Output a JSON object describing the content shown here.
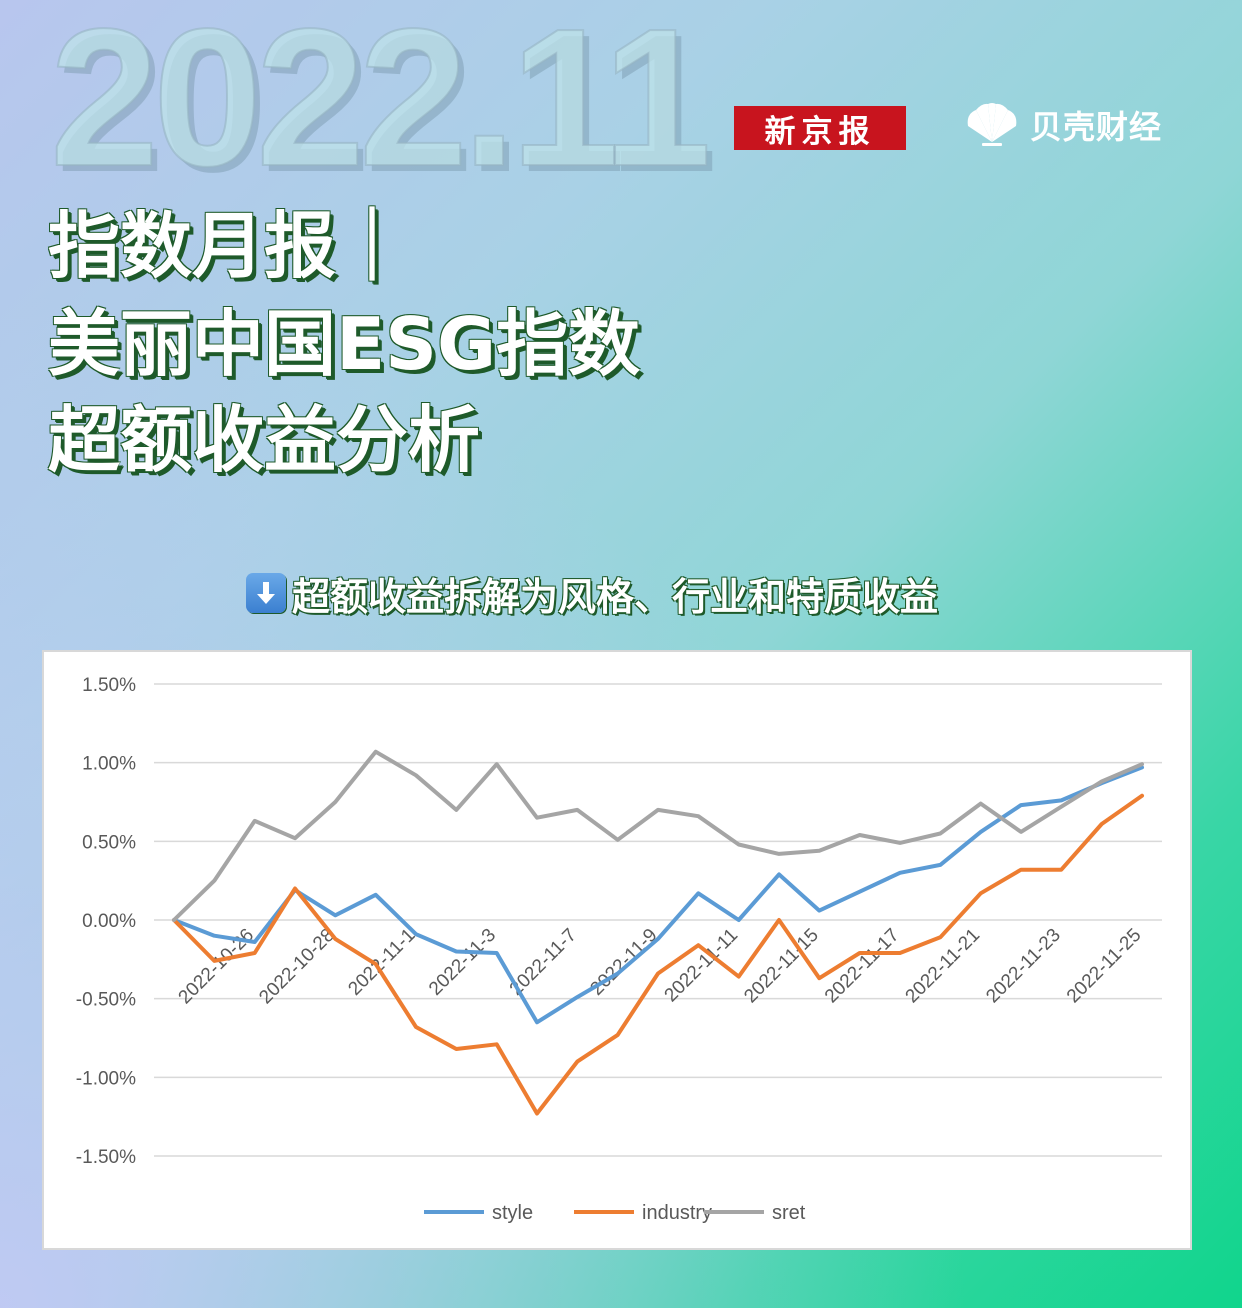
{
  "header": {
    "year_month": "2022.11",
    "xjb_logo": "新京报",
    "bk_logo": "贝壳财经"
  },
  "title": {
    "line1": "指数月报｜",
    "line2": "美丽中国ESG指数",
    "line3": "超额收益分析"
  },
  "subtitle": {
    "icon": "down-arrow-icon",
    "text": "超额收益拆解为风格、行业和特质收益"
  },
  "chart_data": {
    "type": "line",
    "y_ticks": [
      "1.50%",
      "1.00%",
      "0.50%",
      "0.00%",
      "-0.50%",
      "-1.00%",
      "-1.50%"
    ],
    "ylim": [
      -1.5,
      1.5
    ],
    "x_tick_labels": [
      "2022-10-26",
      "2022-10-28",
      "2022-11-1",
      "2022-11-3",
      "2022-11-7",
      "2022-11-9",
      "2022-11-11",
      "2022-11-15",
      "2022-11-17",
      "2022-11-21",
      "2022-11-23",
      "2022-11-25"
    ],
    "grid": true,
    "legend_position": "bottom",
    "series": [
      {
        "name": "style",
        "color": "#5b9bd5",
        "values": [
          0.0,
          -0.1,
          -0.14,
          0.19,
          0.03,
          0.16,
          -0.09,
          -0.2,
          -0.21,
          -0.65,
          -0.49,
          -0.34,
          -0.12,
          0.17,
          0.0,
          0.29,
          0.06,
          0.18,
          0.3,
          0.35,
          0.56,
          0.73,
          0.76,
          0.87,
          0.97
        ]
      },
      {
        "name": "industry",
        "color": "#ed7d31",
        "values": [
          0.0,
          -0.26,
          -0.21,
          0.2,
          -0.12,
          -0.28,
          -0.68,
          -0.82,
          -0.79,
          -1.23,
          -0.9,
          -0.73,
          -0.34,
          -0.16,
          -0.36,
          0.0,
          -0.37,
          -0.21,
          -0.21,
          -0.11,
          0.17,
          0.32,
          0.32,
          0.61,
          0.79
        ]
      },
      {
        "name": "sret",
        "color": "#a5a5a5",
        "values": [
          0.0,
          0.25,
          0.63,
          0.52,
          0.75,
          1.07,
          0.92,
          0.7,
          0.99,
          0.65,
          0.7,
          0.51,
          0.7,
          0.66,
          0.48,
          0.42,
          0.44,
          0.54,
          0.49,
          0.55,
          0.74,
          0.56,
          0.72,
          0.88,
          0.99
        ]
      }
    ]
  }
}
